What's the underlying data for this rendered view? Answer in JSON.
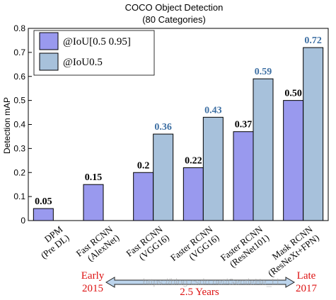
{
  "chart_data": {
    "type": "bar",
    "title": "COCO Object Detection",
    "subtitle": "(80 Categories)",
    "ylabel": "Detection mAP",
    "xlabel": "",
    "ylim": [
      0,
      0.8
    ],
    "yticks": [
      "0",
      "0.1",
      "0.2",
      "0.3",
      "0.4",
      "0.5",
      "0.6",
      "0.7",
      "0.8"
    ],
    "grid": false,
    "legend_position": "top-left",
    "categories": [
      {
        "line1": "DPM",
        "line2": "(Pre DL)"
      },
      {
        "line1": "Fast RCNN",
        "line2": "(AlexNet)"
      },
      {
        "line1": "Fast RCNN",
        "line2": "(VGG16)"
      },
      {
        "line1": "Faster RCNN",
        "line2": "(VGG16)"
      },
      {
        "line1": "Faster RCNN",
        "line2": "(ResNet101)"
      },
      {
        "line1": "Mask RCNN",
        "line2": "(ResNeXt+FPN)"
      }
    ],
    "series": [
      {
        "name": "@IoU[0.5 0.95]",
        "color": "#9999ee",
        "label_color": "#000000",
        "values": [
          0.05,
          0.15,
          0.2,
          0.22,
          0.37,
          0.5
        ],
        "labels": [
          "0.05",
          "0.15",
          "0.2",
          "0.22",
          "0.37",
          "0.50"
        ]
      },
      {
        "name": "@IoU0.5",
        "color": "#a7c1db",
        "label_color": "#3d6fa3",
        "values": [
          null,
          null,
          0.36,
          0.43,
          0.59,
          0.72
        ],
        "labels": [
          null,
          null,
          "0.36",
          "0.43",
          "0.59",
          "0.72"
        ]
      }
    ],
    "timeline": {
      "start_line1": "Early",
      "start_line2": "2015",
      "end_line1": "Late",
      "end_line2": "2017",
      "span_label": "2.5 Years",
      "text_color": "#dd1111"
    },
    "watermark": "https://blog.csdn.net/GentleHe_Li"
  }
}
